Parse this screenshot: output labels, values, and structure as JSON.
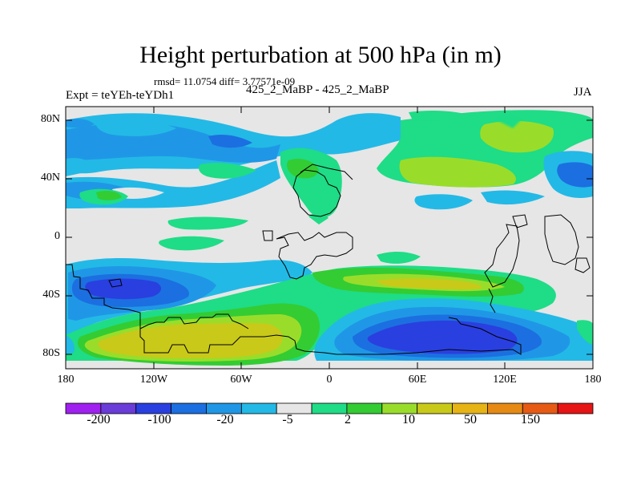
{
  "title": "Height perturbation at 500 hPa (in m)",
  "stats": "rmsd= 11.0754 diff= 3.77571e-09",
  "experiment": "Expt = teYEh-teYDh1",
  "experiment_names": "425_2_MaBP - 425_2_MaBP",
  "season": "JJA",
  "axes": {
    "y_ticks": [
      "80N",
      "40N",
      "0",
      "40S",
      "80S"
    ],
    "x_ticks": [
      "180",
      "120W",
      "60W",
      "0",
      "60E",
      "120E",
      "180"
    ]
  },
  "colorbar": {
    "labels": [
      "-200",
      "-100",
      "-20",
      "-5",
      "2",
      "10",
      "50",
      "150"
    ],
    "colors": [
      "#a020f0",
      "#6a3cd8",
      "#2a3fe0",
      "#1c6fe0",
      "#1f97e6",
      "#23b9e6",
      "#e6e6e6",
      "#1fdc86",
      "#33cc33",
      "#99dd2a",
      "#c9c91a",
      "#e6b414",
      "#e68a14",
      "#e65a14",
      "#e61414"
    ]
  },
  "colors": {
    "land_outline": "#000000",
    "background_field": "#e6e6e6"
  }
}
